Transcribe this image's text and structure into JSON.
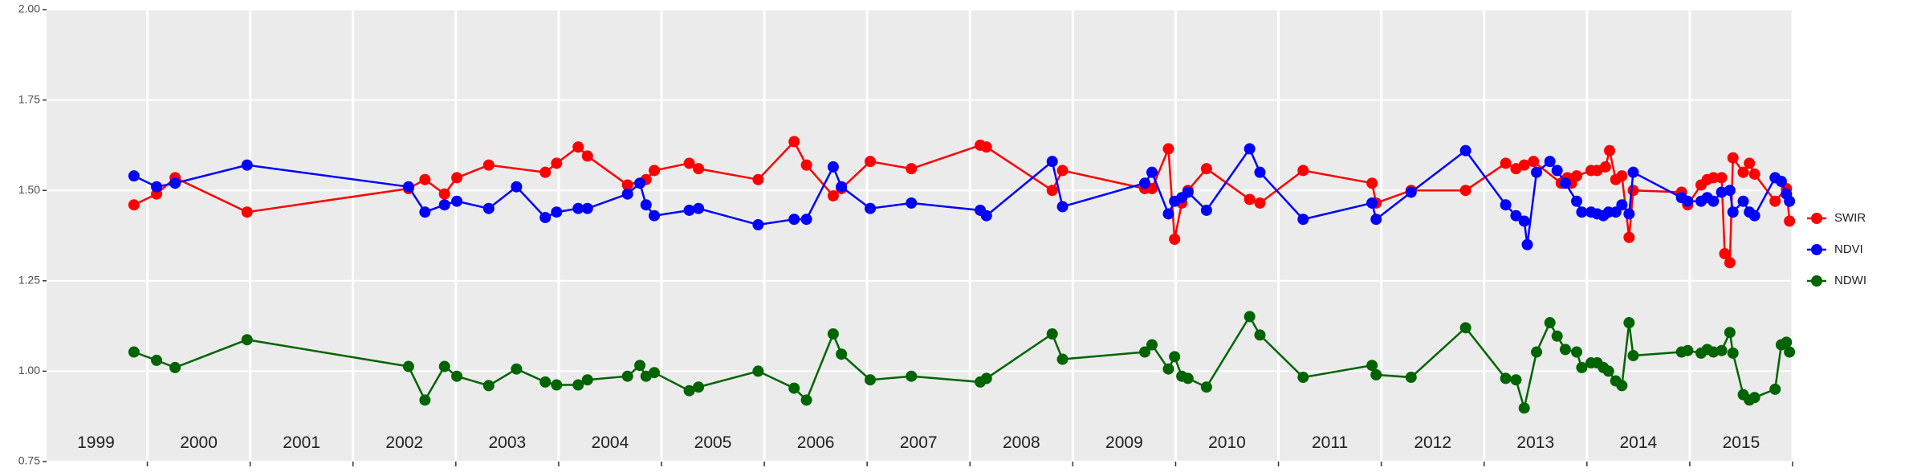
{
  "chart_data": {
    "type": "line",
    "xlim": [
      1999.02,
      2016.0
    ],
    "xticks": [
      2000,
      2001,
      2002,
      2003,
      2004,
      2005,
      2006,
      2007,
      2008,
      2009,
      2010,
      2011,
      2012,
      2013,
      2014,
      2015,
      2016
    ],
    "ylim": [
      0.75,
      2.0
    ],
    "yticks": [
      0.75,
      {
        "value": 1.0,
        "label": "1.00"
      },
      1.25,
      {
        "value": 1.5,
        "label": "1.50"
      },
      1.75,
      {
        "value": 2.0,
        "label": "2.00"
      }
    ],
    "grid": true,
    "legend": "right",
    "annotations": [
      {
        "text": "1999",
        "x": 1999.5,
        "y": 0.8
      },
      {
        "text": "2000",
        "x": 2000.5,
        "y": 0.8
      },
      {
        "text": "2001",
        "x": 2001.5,
        "y": 0.8
      },
      {
        "text": "2002",
        "x": 2002.5,
        "y": 0.8
      },
      {
        "text": "2003",
        "x": 2003.5,
        "y": 0.8
      },
      {
        "text": "2004",
        "x": 2004.5,
        "y": 0.8
      },
      {
        "text": "2005",
        "x": 2005.5,
        "y": 0.8
      },
      {
        "text": "2006",
        "x": 2006.5,
        "y": 0.8
      },
      {
        "text": "2007",
        "x": 2007.5,
        "y": 0.8
      },
      {
        "text": "2008",
        "x": 2008.5,
        "y": 0.8
      },
      {
        "text": "2009",
        "x": 2009.5,
        "y": 0.8
      },
      {
        "text": "2010",
        "x": 2010.5,
        "y": 0.8
      },
      {
        "text": "2011",
        "x": 2011.5,
        "y": 0.8
      },
      {
        "text": "2012",
        "x": 2012.5,
        "y": 0.8
      },
      {
        "text": "2013",
        "x": 2013.5,
        "y": 0.8
      },
      {
        "text": "2014",
        "x": 2014.5,
        "y": 0.8
      },
      {
        "text": "2015",
        "x": 2015.5,
        "y": 0.8
      }
    ],
    "series": [
      {
        "name": "SWIR",
        "color": "#ff0000",
        "x": [
          1999.87,
          2000.09,
          2000.27,
          2000.97,
          2002.54,
          2002.7,
          2002.89,
          2003.01,
          2003.32,
          2003.87,
          2003.98,
          2004.19,
          2004.28,
          2004.67,
          2004.85,
          2004.93,
          2005.27,
          2005.36,
          2005.94,
          2006.29,
          2006.41,
          2006.67,
          2006.75,
          2007.03,
          2007.43,
          2008.1,
          2008.16,
          2008.8,
          2008.9,
          2009.7,
          2009.77,
          2009.93,
          2009.99,
          2010.06,
          2010.12,
          2010.3,
          2010.72,
          2010.82,
          2011.24,
          2011.91,
          2011.95,
          2012.29,
          2012.82,
          2013.21,
          2013.31,
          2013.39,
          2013.48,
          2013.75,
          2013.81,
          2013.85,
          2013.9,
          2014.04,
          2014.1,
          2014.18,
          2014.22,
          2014.28,
          2014.34,
          2014.41,
          2014.45,
          2014.92,
          2014.98,
          2015.11,
          2015.17,
          2015.23,
          2015.31,
          2015.34,
          2015.39,
          2015.42,
          2015.52,
          2015.58,
          2015.63,
          2015.83,
          2015.94,
          2015.97
        ],
        "values": [
          1.46,
          1.49,
          1.535,
          1.44,
          1.505,
          1.53,
          1.49,
          1.535,
          1.57,
          1.55,
          1.575,
          1.62,
          1.595,
          1.515,
          1.53,
          1.555,
          1.575,
          1.56,
          1.53,
          1.635,
          1.57,
          1.485,
          1.505,
          1.58,
          1.56,
          1.625,
          1.62,
          1.5,
          1.555,
          1.505,
          1.505,
          1.615,
          1.365,
          1.465,
          1.5,
          1.56,
          1.475,
          1.465,
          1.555,
          1.52,
          1.465,
          1.5,
          1.5,
          1.575,
          1.56,
          1.57,
          1.58,
          1.52,
          1.535,
          1.52,
          1.54,
          1.555,
          1.555,
          1.565,
          1.61,
          1.53,
          1.54,
          1.37,
          1.5,
          1.495,
          1.46,
          1.515,
          1.53,
          1.535,
          1.535,
          1.325,
          1.3,
          1.59,
          1.55,
          1.575,
          1.545,
          1.47,
          1.505,
          1.415
        ]
      },
      {
        "name": "NDVI",
        "color": "#0000ff",
        "x": [
          1999.87,
          2000.09,
          2000.27,
          2000.97,
          2002.54,
          2002.7,
          2002.89,
          2003.01,
          2003.32,
          2003.59,
          2003.87,
          2003.98,
          2004.19,
          2004.28,
          2004.67,
          2004.79,
          2004.85,
          2004.93,
          2005.27,
          2005.36,
          2005.94,
          2006.29,
          2006.41,
          2006.67,
          2006.75,
          2007.03,
          2007.43,
          2008.1,
          2008.16,
          2008.8,
          2008.9,
          2009.7,
          2009.77,
          2009.93,
          2009.99,
          2010.06,
          2010.12,
          2010.3,
          2010.72,
          2010.82,
          2011.24,
          2011.91,
          2011.95,
          2012.29,
          2012.82,
          2013.21,
          2013.31,
          2013.39,
          2013.42,
          2013.51,
          2013.64,
          2013.71,
          2013.79,
          2013.9,
          2013.95,
          2014.04,
          2014.1,
          2014.16,
          2014.21,
          2014.28,
          2014.34,
          2014.41,
          2014.45,
          2014.92,
          2014.98,
          2015.11,
          2015.17,
          2015.23,
          2015.31,
          2015.39,
          2015.42,
          2015.52,
          2015.58,
          2015.63,
          2015.83,
          2015.89,
          2015.94,
          2015.97
        ],
        "values": [
          1.54,
          1.51,
          1.52,
          1.57,
          1.51,
          1.44,
          1.46,
          1.47,
          1.45,
          1.51,
          1.425,
          1.44,
          1.45,
          1.45,
          1.49,
          1.52,
          1.46,
          1.43,
          1.445,
          1.45,
          1.405,
          1.42,
          1.42,
          1.565,
          1.51,
          1.45,
          1.465,
          1.445,
          1.43,
          1.58,
          1.455,
          1.52,
          1.55,
          1.435,
          1.47,
          1.48,
          1.495,
          1.445,
          1.615,
          1.55,
          1.42,
          1.465,
          1.42,
          1.495,
          1.61,
          1.46,
          1.43,
          1.415,
          1.35,
          1.55,
          1.58,
          1.555,
          1.52,
          1.47,
          1.44,
          1.44,
          1.435,
          1.43,
          1.44,
          1.44,
          1.46,
          1.435,
          1.55,
          1.48,
          1.47,
          1.47,
          1.48,
          1.47,
          1.495,
          1.5,
          1.44,
          1.47,
          1.44,
          1.43,
          1.535,
          1.525,
          1.49,
          1.47
        ]
      },
      {
        "name": "NDWI",
        "color": "#006400",
        "x": [
          1999.87,
          2000.09,
          2000.27,
          2000.97,
          2002.54,
          2002.7,
          2002.89,
          2003.01,
          2003.32,
          2003.59,
          2003.87,
          2003.98,
          2004.19,
          2004.28,
          2004.67,
          2004.79,
          2004.85,
          2004.93,
          2005.27,
          2005.36,
          2005.94,
          2006.29,
          2006.41,
          2006.67,
          2006.75,
          2007.03,
          2007.43,
          2008.1,
          2008.16,
          2008.8,
          2008.9,
          2009.7,
          2009.77,
          2009.93,
          2009.99,
          2010.06,
          2010.12,
          2010.3,
          2010.72,
          2010.82,
          2011.24,
          2011.91,
          2011.95,
          2012.29,
          2012.82,
          2013.21,
          2013.31,
          2013.39,
          2013.51,
          2013.64,
          2013.71,
          2013.79,
          2013.9,
          2013.95,
          2014.04,
          2014.1,
          2014.16,
          2014.21,
          2014.28,
          2014.34,
          2014.41,
          2014.45,
          2014.92,
          2014.98,
          2015.11,
          2015.17,
          2015.23,
          2015.31,
          2015.39,
          2015.42,
          2015.52,
          2015.58,
          2015.63,
          2015.83,
          2015.89,
          2015.94,
          2015.97
        ],
        "values": [
          1.053,
          1.03,
          1.01,
          1.087,
          1.013,
          0.92,
          1.013,
          0.986,
          0.96,
          1.006,
          0.97,
          0.962,
          0.962,
          0.976,
          0.986,
          1.016,
          0.986,
          0.996,
          0.946,
          0.956,
          1.0,
          0.953,
          0.92,
          1.103,
          1.047,
          0.976,
          0.986,
          0.97,
          0.98,
          1.103,
          1.033,
          1.053,
          1.073,
          1.006,
          1.04,
          0.986,
          0.98,
          0.956,
          1.151,
          1.1,
          0.983,
          1.016,
          0.99,
          0.983,
          1.12,
          0.98,
          0.976,
          0.898,
          1.053,
          1.134,
          1.097,
          1.06,
          1.053,
          1.01,
          1.023,
          1.023,
          1.01,
          1.0,
          0.973,
          0.96,
          1.134,
          1.043,
          1.053,
          1.057,
          1.05,
          1.06,
          1.053,
          1.057,
          1.107,
          1.05,
          0.935,
          0.92,
          0.927,
          0.95,
          1.073,
          1.08,
          1.053
        ]
      }
    ]
  }
}
